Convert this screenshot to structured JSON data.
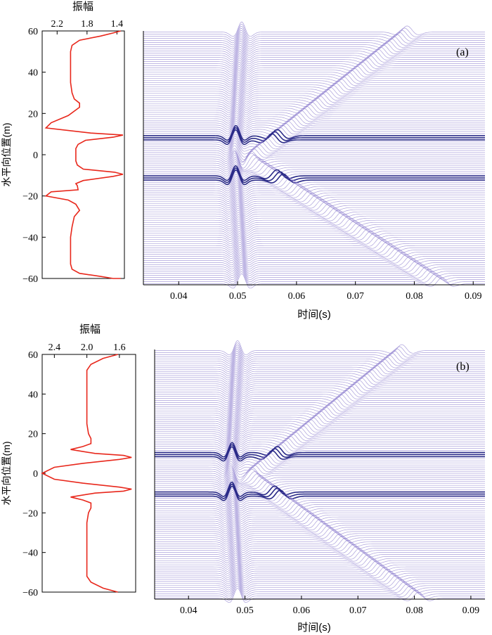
{
  "chart_data": [
    {
      "panel": "a",
      "type": "line",
      "title": "",
      "xlabel": "振幅",
      "ylabel": "水平向位置(m)",
      "x_ticks": [
        "2.2",
        "1.8",
        "1.4"
      ],
      "x_tick_values": [
        2.2,
        1.8,
        1.4
      ],
      "xlim": [
        2.4,
        1.3
      ],
      "x_axis_position": "top",
      "x_reversed": true,
      "y_ticks": [
        "60",
        "40",
        "20",
        "0",
        "−20",
        "−40",
        "−60"
      ],
      "y_tick_values": [
        60,
        40,
        20,
        0,
        -20,
        -40,
        -60
      ],
      "ylim": [
        -60,
        60
      ],
      "line_color": "#e8271b",
      "series": [
        {
          "x": [
            1.35,
            1.45,
            1.62,
            1.9,
            2.0,
            2.02,
            2.02,
            2.02,
            2.02,
            2.0,
            1.97,
            1.9,
            1.9,
            2.05,
            2.28,
            2.35,
            1.75,
            1.32,
            1.45,
            1.82,
            1.92,
            1.95,
            1.95,
            1.95,
            1.93,
            1.85,
            1.43,
            1.32,
            1.45,
            1.85,
            1.95,
            1.93,
            1.92,
            2.28,
            2.35,
            2.05,
            1.95,
            1.9,
            1.97,
            2.0,
            2.02,
            2.02,
            2.02,
            2.02,
            2.0,
            1.9,
            1.62,
            1.45,
            1.35
          ],
          "y": [
            60,
            59,
            57.5,
            55.5,
            53,
            50,
            45,
            40,
            35,
            30,
            27,
            25,
            23,
            19,
            15.5,
            13,
            10.5,
            9.5,
            8.5,
            7,
            5,
            3,
            0,
            -3,
            -5,
            -7,
            -8.5,
            -9.5,
            -10.5,
            -12.5,
            -14,
            -15,
            -17,
            -18,
            -20,
            -22,
            -24,
            -27,
            -30,
            -35,
            -40,
            -45,
            -50,
            -53,
            -55.5,
            -57.5,
            -59,
            -60,
            -60
          ]
        }
      ]
    },
    {
      "panel": "a",
      "type": "line",
      "title": "",
      "annotation": "(a)",
      "xlabel": "时间(s)",
      "ylabel": "",
      "x_ticks": [
        "0.04",
        "0.05",
        "0.06",
        "0.07",
        "0.08",
        "0.09"
      ],
      "x_tick_values": [
        0.04,
        0.05,
        0.06,
        0.07,
        0.08,
        0.09
      ],
      "xlim": [
        0.034,
        0.092
      ],
      "ylim": [
        -60,
        60
      ],
      "trace_color": "#8877cc",
      "traces": {
        "count": 120,
        "position_range": [
          -60,
          60
        ],
        "description_of_events": [
          {
            "name": "incident",
            "t_center": 0.0495
          },
          {
            "name": "interface",
            "y": 9.5,
            "t_start": 0.034,
            "t_end": 0.092
          },
          {
            "name": "interface",
            "y": -9.5,
            "t_start": 0.034,
            "t_end": 0.092
          },
          {
            "name": "reflected-up",
            "t_at_source": 0.052,
            "slowness_s_per_m": 0.00045
          },
          {
            "name": "reflected-down",
            "t_at_source": 0.052,
            "slowness_s_per_m": 0.00055
          }
        ]
      }
    },
    {
      "panel": "b",
      "type": "line",
      "title": "",
      "xlabel": "振幅",
      "ylabel": "水平向位置(m)",
      "x_ticks": [
        "2.4",
        "2.0",
        "1.6"
      ],
      "x_tick_values": [
        2.4,
        2.0,
        1.6
      ],
      "xlim": [
        2.55,
        1.4
      ],
      "x_axis_position": "top",
      "x_reversed": true,
      "y_ticks": [
        "60",
        "40",
        "20",
        "0",
        "−20",
        "−40",
        "−60"
      ],
      "y_tick_values": [
        60,
        40,
        20,
        0,
        -20,
        -40,
        -60
      ],
      "ylim": [
        -60,
        60
      ],
      "line_color": "#e8271b",
      "series": [
        {
          "x": [
            1.62,
            1.8,
            1.95,
            2.0,
            2.0,
            2.0,
            2.0,
            1.98,
            1.95,
            1.95,
            2.05,
            2.2,
            1.9,
            1.55,
            1.45,
            1.6,
            2.05,
            2.4,
            2.55,
            2.4,
            2.05,
            1.6,
            1.45,
            1.55,
            1.9,
            2.2,
            2.05,
            1.95,
            1.95,
            1.98,
            2.0,
            2.0,
            2.0,
            2.0,
            1.95,
            1.8,
            1.62
          ],
          "y": [
            60,
            58,
            55,
            52,
            45,
            35,
            25,
            20,
            17.5,
            15,
            13.5,
            12,
            10,
            9,
            8,
            7,
            5,
            3,
            0,
            -3,
            -5,
            -7,
            -8,
            -9,
            -10,
            -12,
            -13.5,
            -15,
            -17.5,
            -20,
            -25,
            -35,
            -45,
            -52,
            -55,
            -58,
            -60
          ]
        }
      ]
    },
    {
      "panel": "b",
      "type": "line",
      "title": "",
      "annotation": "(b)",
      "xlabel": "时间(s)",
      "ylabel": "",
      "x_ticks": [
        "0.04",
        "0.05",
        "0.06",
        "0.07",
        "0.08",
        "0.09"
      ],
      "x_tick_values": [
        0.04,
        0.05,
        0.06,
        0.07,
        0.08,
        0.09
      ],
      "xlim": [
        0.034,
        0.0925
      ],
      "ylim": [
        -60,
        60
      ],
      "trace_color": "#8877cc",
      "traces": {
        "count": 120,
        "position_range": [
          -60,
          60
        ],
        "description_of_events": [
          {
            "name": "incident",
            "t_center": 0.0475
          },
          {
            "name": "interface",
            "y": 9.5,
            "t_start": 0.034,
            "t_end": 0.0925
          },
          {
            "name": "interface",
            "y": -9.5,
            "t_start": 0.034,
            "t_end": 0.0925
          },
          {
            "name": "reflected-up",
            "t_at_source": 0.051,
            "slowness_s_per_m": 0.00045
          },
          {
            "name": "reflected-down",
            "t_at_source": 0.051,
            "slowness_s_per_m": 0.0005
          }
        ]
      }
    }
  ]
}
